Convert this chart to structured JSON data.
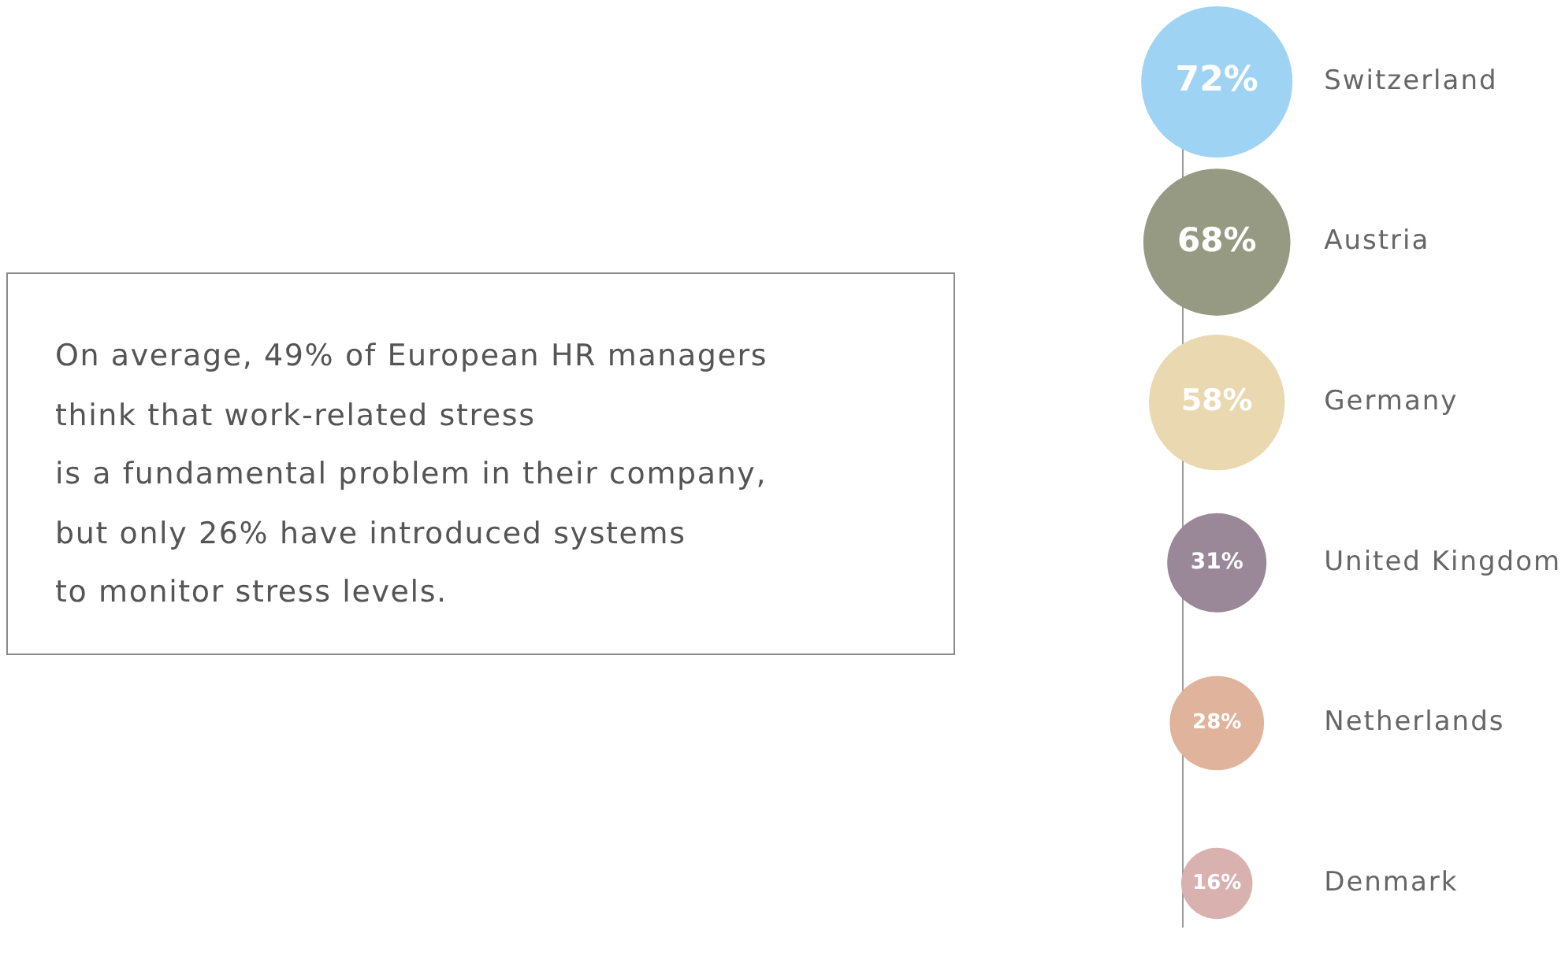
{
  "chart_data": {
    "type": "other",
    "categories": [
      "Switzerland",
      "Austria",
      "Germany",
      "United Kingdom",
      "Netherlands",
      "Denmark"
    ],
    "values": [
      72,
      68,
      58,
      31,
      28,
      16
    ],
    "colors": [
      "#9fd3f3",
      "#979a82",
      "#e9d8b0",
      "#9a8898",
      "#e0b49c",
      "#d9b1ae"
    ],
    "value_labels": [
      "72%",
      "68%",
      "58%",
      "31%",
      "28%",
      "16%"
    ],
    "annotations": [
      "On average, 49% of European HR managers\nthink that work-related stress\nis a fundamental problem in their company,\nbut only 26% have introduced systems\nto monitor stress levels."
    ]
  }
}
